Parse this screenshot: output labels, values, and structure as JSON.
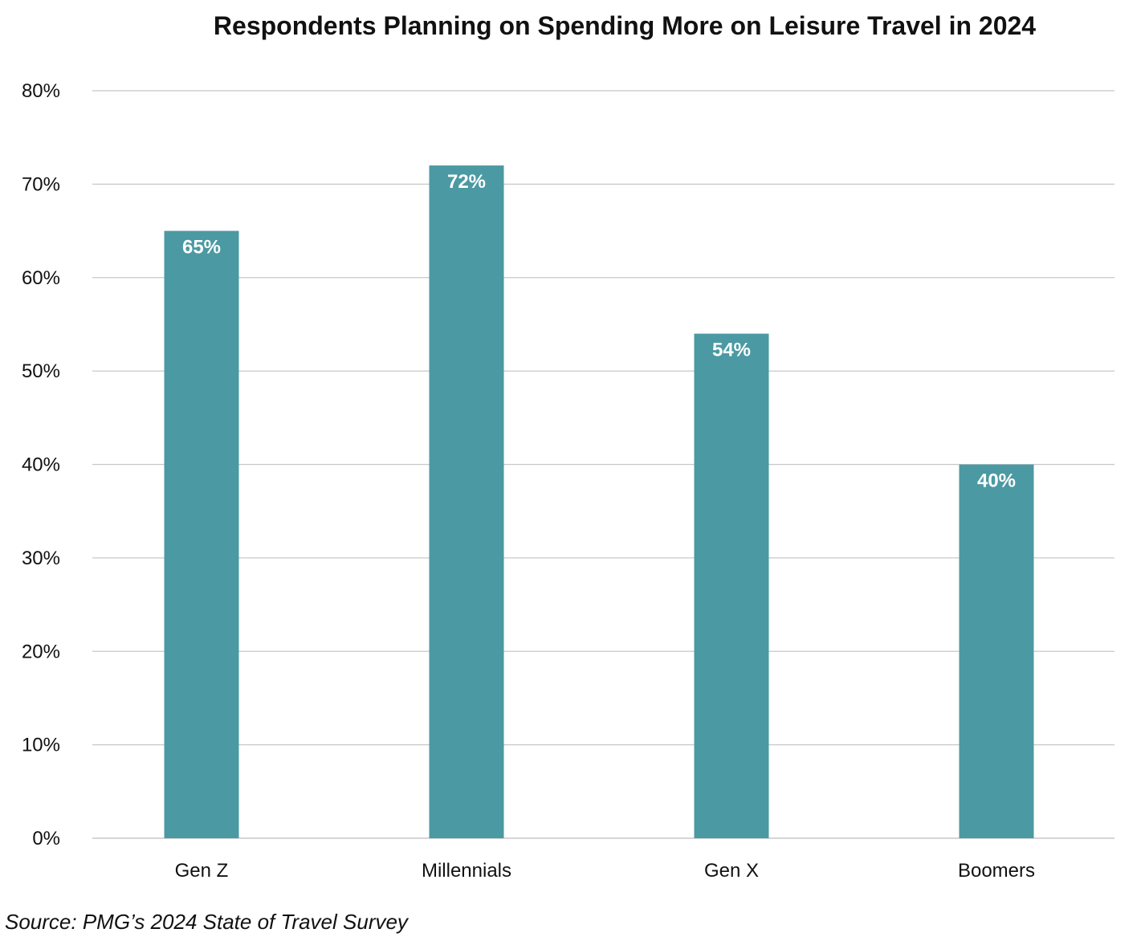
{
  "chart_data": {
    "type": "bar",
    "title": "Respondents Planning on Spending More on Leisure Travel in 2024",
    "categories": [
      "Gen Z",
      "Millennials",
      "Gen X",
      "Boomers"
    ],
    "values": [
      65,
      72,
      54,
      40
    ],
    "data_labels": [
      "65%",
      "72%",
      "54%",
      "40%"
    ],
    "ylim": [
      0,
      80
    ],
    "yticks": [
      0,
      10,
      20,
      30,
      40,
      50,
      60,
      70,
      80
    ],
    "ytick_labels": [
      "0%",
      "10%",
      "20%",
      "30%",
      "40%",
      "50%",
      "60%",
      "70%",
      "80%"
    ],
    "xlabel": "",
    "ylabel": "",
    "grid": true,
    "legend": "none",
    "bar_color": "#4b99a3",
    "grid_color": "#c8c8c8"
  },
  "source": "Source: PMG’s 2024 State of Travel Survey"
}
